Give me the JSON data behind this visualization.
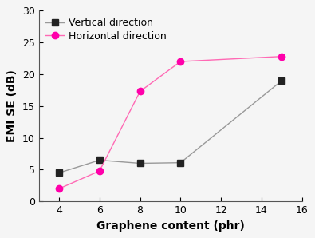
{
  "title": "",
  "xlabel": "Graphene content (phr)",
  "ylabel": "EMI SE (dB)",
  "xlim": [
    3,
    16
  ],
  "ylim": [
    0,
    30
  ],
  "xticks": [
    4,
    6,
    8,
    10,
    12,
    14,
    16
  ],
  "yticks": [
    0,
    5,
    10,
    15,
    20,
    25,
    30
  ],
  "vertical_x": [
    4,
    6,
    8,
    10,
    15
  ],
  "vertical_y": [
    4.5,
    6.5,
    6.0,
    6.1,
    19.0
  ],
  "horizontal_x": [
    4,
    6,
    8,
    10,
    15
  ],
  "horizontal_y": [
    2.0,
    4.8,
    17.3,
    22.0,
    22.8
  ],
  "vertical_line_color": "#999999",
  "vertical_marker_color": "#222222",
  "horizontal_line_color": "#FF69B4",
  "horizontal_marker_color": "#FF00AA",
  "vertical_label": "Vertical direction",
  "horizontal_label": "Horizontal direction",
  "marker_size": 6,
  "line_width": 1.0,
  "xlabel_fontsize": 10,
  "ylabel_fontsize": 10,
  "tick_fontsize": 9,
  "legend_fontsize": 9,
  "bg_color": "#f5f5f5"
}
